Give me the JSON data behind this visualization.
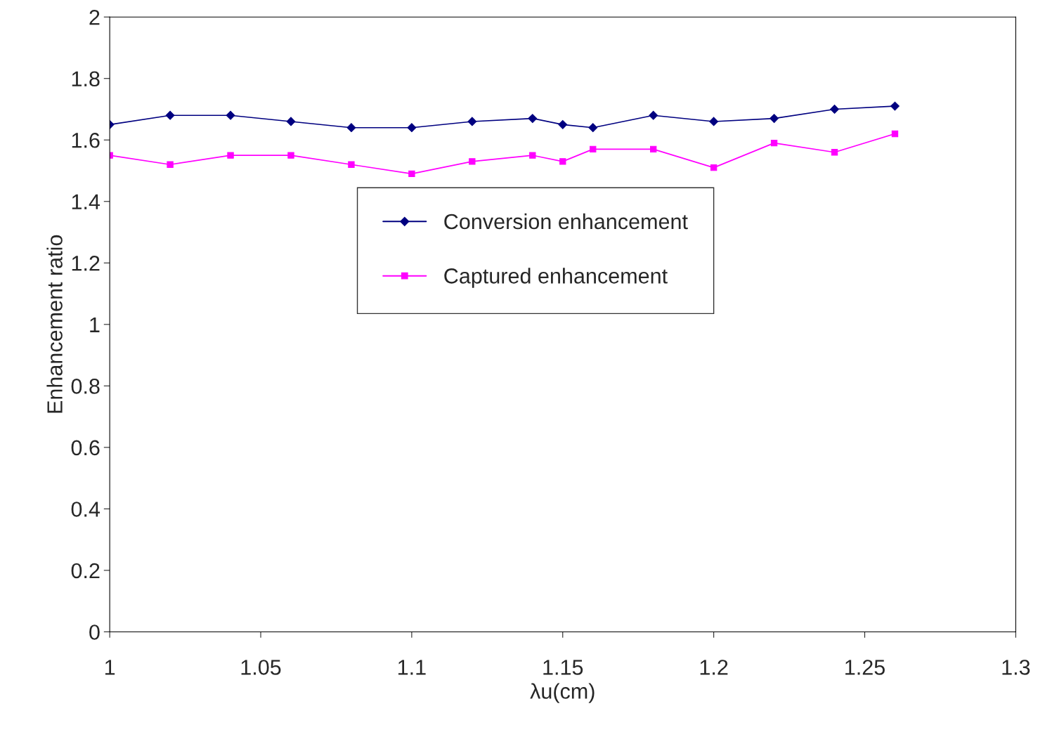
{
  "chart_data": {
    "type": "line",
    "xlabel": "λu(cm)",
    "ylabel": "Enhancement ratio",
    "x": [
      1.0,
      1.02,
      1.04,
      1.06,
      1.08,
      1.1,
      1.12,
      1.14,
      1.15,
      1.16,
      1.18,
      1.2,
      1.22,
      1.24,
      1.26
    ],
    "series": [
      {
        "name": "Conversion enhancement",
        "color": "#000080",
        "marker": "diamond",
        "values": [
          1.65,
          1.68,
          1.68,
          1.66,
          1.64,
          1.64,
          1.66,
          1.67,
          1.65,
          1.64,
          1.68,
          1.66,
          1.67,
          1.7,
          1.71
        ]
      },
      {
        "name": "Captured enhancement",
        "color": "#ff00ff",
        "marker": "square",
        "values": [
          1.55,
          1.52,
          1.55,
          1.55,
          1.52,
          1.49,
          1.53,
          1.55,
          1.53,
          1.57,
          1.57,
          1.51,
          1.59,
          1.56,
          1.62
        ]
      }
    ],
    "xlim": [
      1,
      1.3
    ],
    "xticks": [
      1,
      1.05,
      1.1,
      1.15,
      1.2,
      1.25,
      1.3
    ],
    "ylim": [
      0,
      2
    ],
    "yticks": [
      0,
      0.2,
      0.4,
      0.6,
      0.8,
      1,
      1.2,
      1.4,
      1.6,
      1.8,
      2
    ],
    "grid": false,
    "legend": "center",
    "line_style": "solid"
  }
}
